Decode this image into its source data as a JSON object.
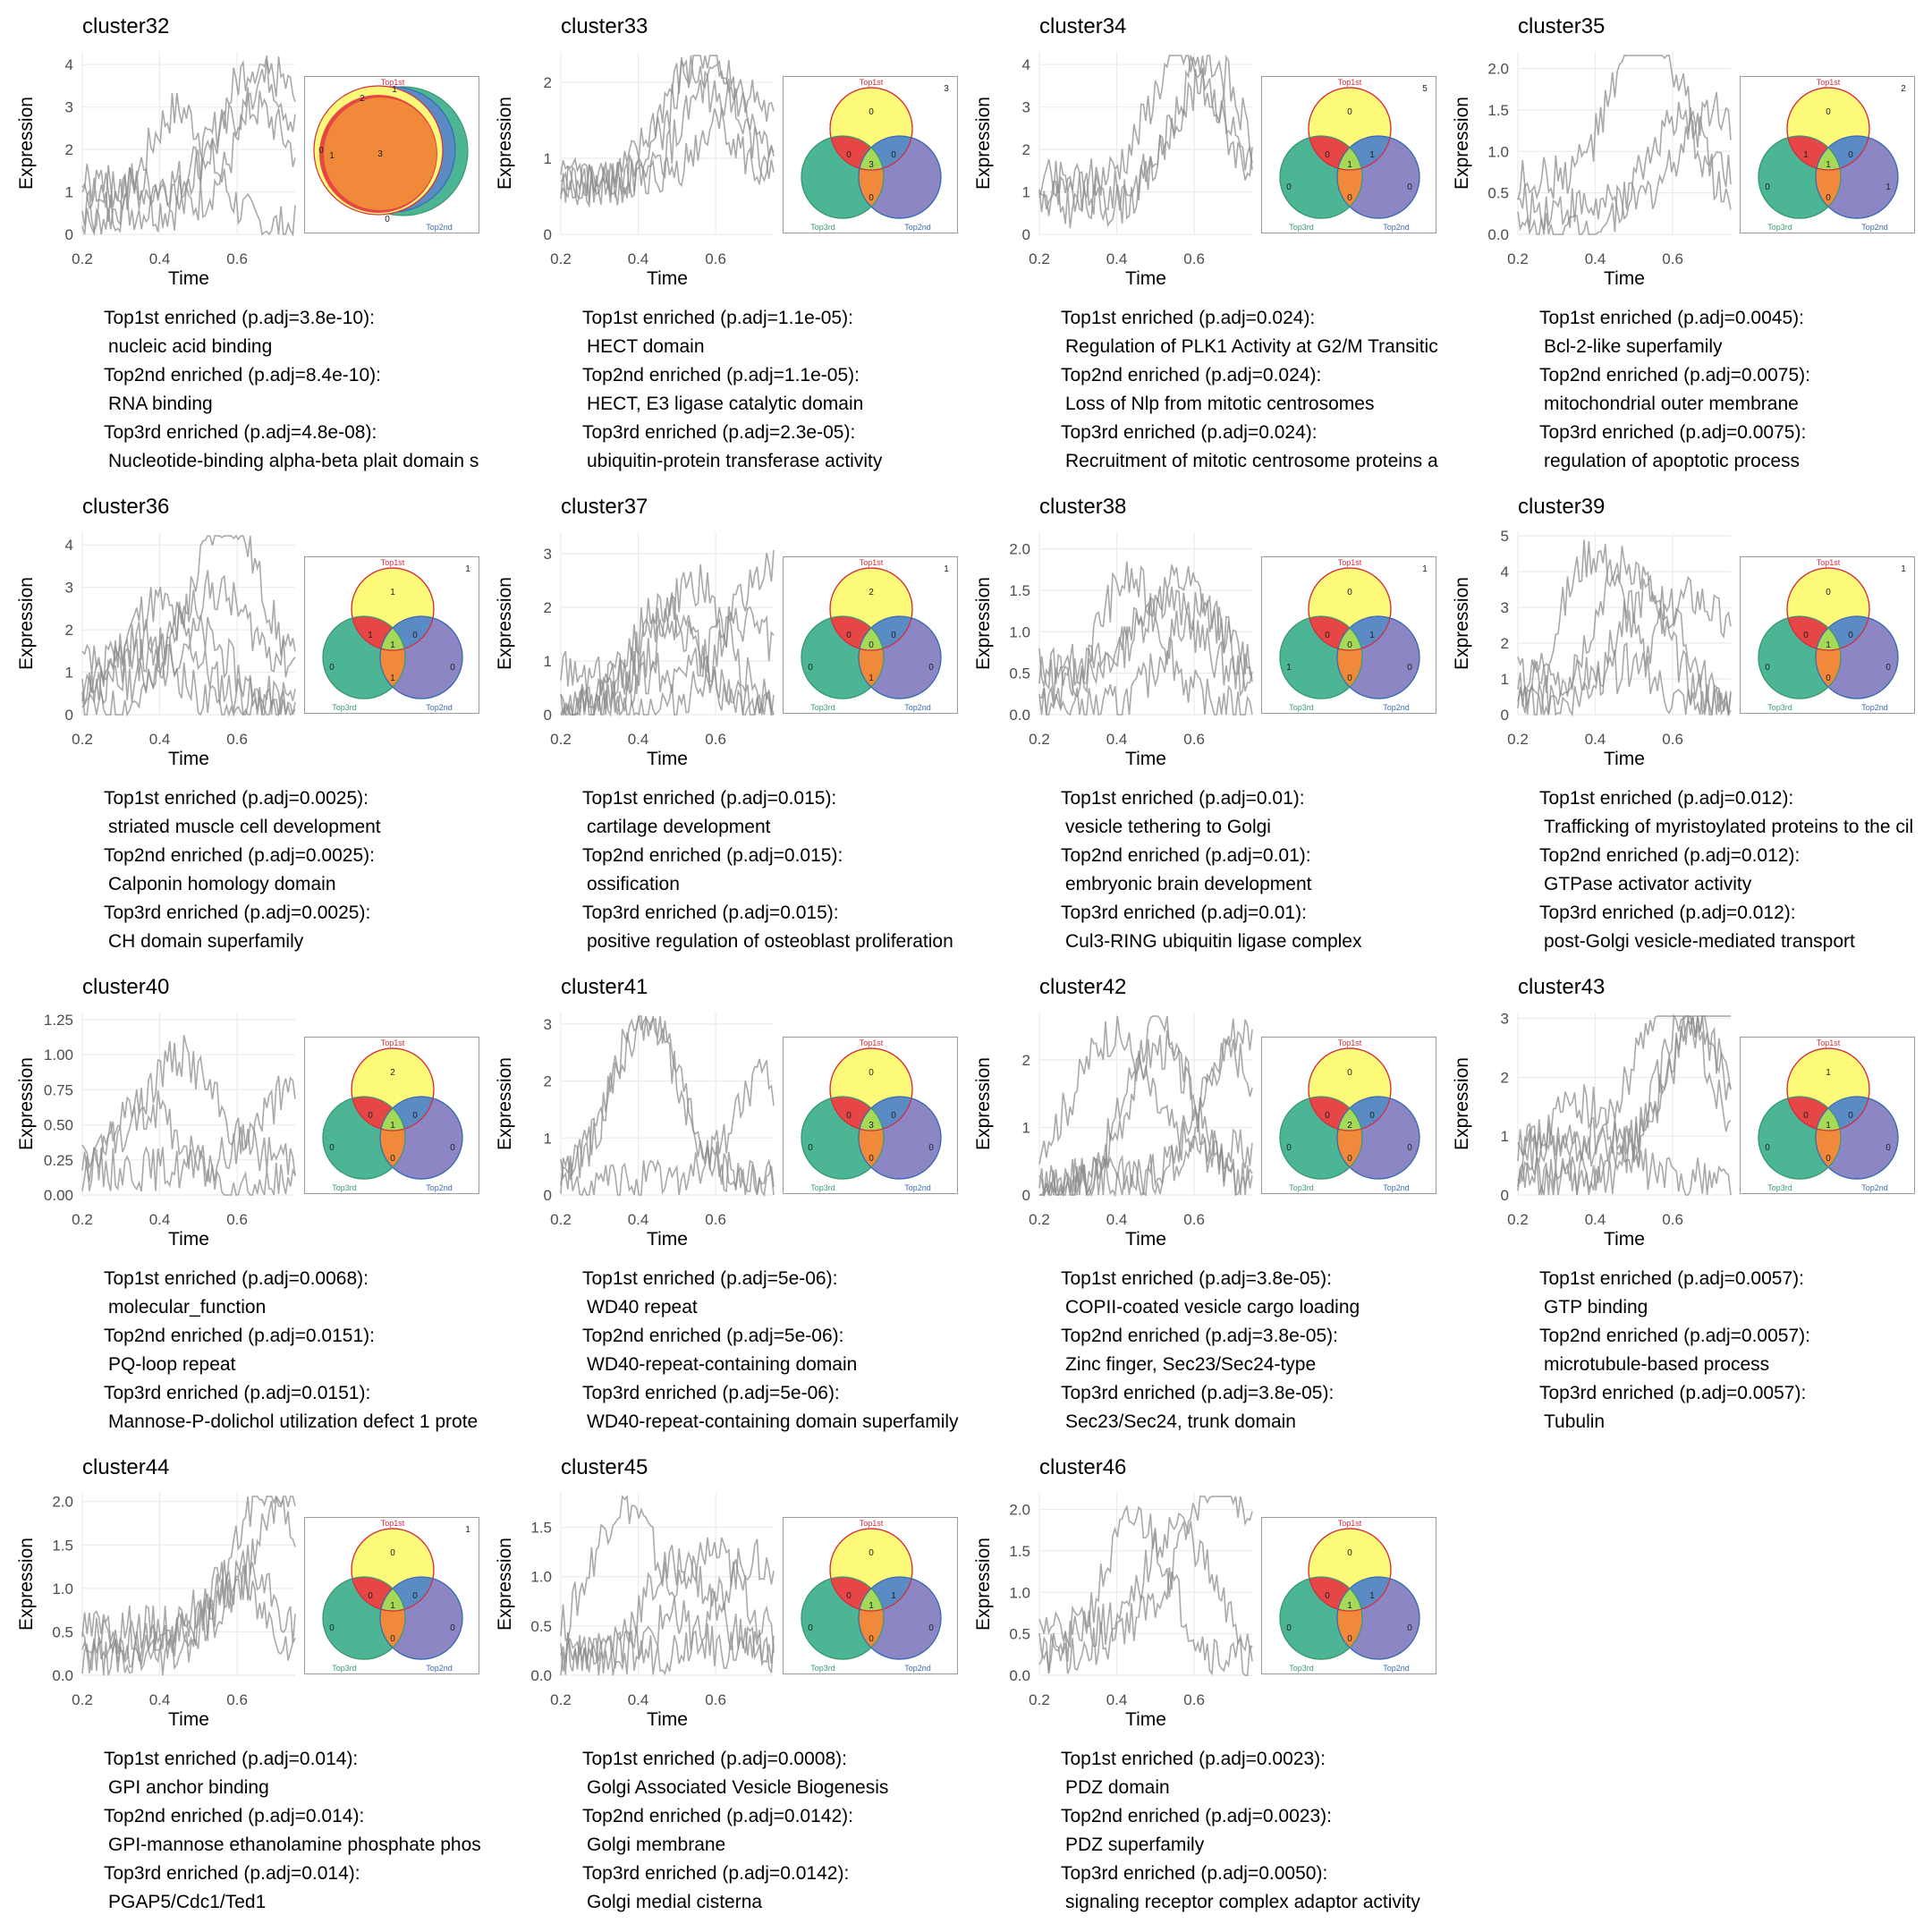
{
  "axis": {
    "xlabel": "Time",
    "ylabel": "Expression"
  },
  "venn_labels": {
    "a": "Top1st",
    "b": "Top2nd",
    "c": "Top3rd"
  },
  "colors": {
    "a": "#fdfa7a",
    "b": "#5a8bc5",
    "c": "#4bb596",
    "ab": "#e64646",
    "bc": "#f08a3a",
    "ac": "#e64646",
    "abc": "#a6d957",
    "line": "#8c8c8c"
  },
  "chart_data": [
    {
      "type": "line",
      "title": "cluster32",
      "xlim": [
        0.2,
        0.75
      ],
      "xticks": [
        "0.2",
        "0.4",
        "0.6"
      ],
      "ylim": [
        0,
        4.3
      ],
      "yticks": [
        "0",
        "1",
        "2",
        "3",
        "4"
      ],
      "venn": {
        "a": "",
        "b": "",
        "ab": "2",
        "bc": "1",
        "ac": "1",
        "abc": "3",
        "c": "",
        "out": "1",
        "extra_a": "0",
        "extra_c": "0",
        "degenerate": true
      },
      "enrich": [
        {
          "label": "Top1st enriched (p.adj=3.8e-10):",
          "term": "nucleic acid binding"
        },
        {
          "label": "Top2nd enriched (p.adj=8.4e-10):",
          "term": "RNA binding"
        },
        {
          "label": "Top3rd enriched (p.adj=4.8e-08):",
          "term": "Nucleotide-binding alpha-beta plait domain s"
        }
      ]
    },
    {
      "type": "line",
      "title": "cluster33",
      "xlim": [
        0.2,
        0.75
      ],
      "xticks": [
        "0.2",
        "0.4",
        "0.6"
      ],
      "ylim": [
        0,
        2.4
      ],
      "yticks": [
        "0",
        "1",
        "2"
      ],
      "venn": {
        "a": "0",
        "b": "",
        "c": "",
        "ab": "0",
        "bc": "0",
        "ac": "0",
        "abc": "3",
        "out": "3"
      },
      "enrich": [
        {
          "label": "Top1st enriched (p.adj=1.1e-05):",
          "term": "HECT domain"
        },
        {
          "label": "Top2nd enriched (p.adj=1.1e-05):",
          "term": "HECT, E3 ligase catalytic domain"
        },
        {
          "label": "Top3rd enriched (p.adj=2.3e-05):",
          "term": "ubiquitin-protein transferase activity"
        }
      ]
    },
    {
      "type": "line",
      "title": "cluster34",
      "xlim": [
        0.2,
        0.75
      ],
      "xticks": [
        "0.2",
        "0.4",
        "0.6"
      ],
      "ylim": [
        0,
        4.3
      ],
      "yticks": [
        "0",
        "1",
        "2",
        "3",
        "4"
      ],
      "venn": {
        "a": "0",
        "b": "0",
        "c": "0",
        "ab": "1",
        "bc": "0",
        "ac": "0",
        "abc": "1",
        "out": "5"
      },
      "enrich": [
        {
          "label": "Top1st enriched (p.adj=0.024):",
          "term": "Regulation of PLK1 Activity at G2/M Transitic"
        },
        {
          "label": "Top2nd enriched (p.adj=0.024):",
          "term": "Loss of Nlp from mitotic centrosomes"
        },
        {
          "label": "Top3rd enriched (p.adj=0.024):",
          "term": "Recruitment of mitotic centrosome proteins a"
        }
      ]
    },
    {
      "type": "line",
      "title": "cluster35",
      "xlim": [
        0.2,
        0.75
      ],
      "xticks": [
        "0.2",
        "0.4",
        "0.6"
      ],
      "ylim": [
        0,
        2.2
      ],
      "yticks": [
        "0.0",
        "0.5",
        "1.0",
        "1.5",
        "2.0"
      ],
      "venn": {
        "a": "0",
        "b": "1",
        "c": "0",
        "ab": "0",
        "bc": "0",
        "ac": "1",
        "abc": "1",
        "out": "2"
      },
      "enrich": [
        {
          "label": "Top1st enriched (p.adj=0.0045):",
          "term": "Bcl-2-like superfamily"
        },
        {
          "label": "Top2nd enriched (p.adj=0.0075):",
          "term": "mitochondrial outer membrane"
        },
        {
          "label": "Top3rd enriched (p.adj=0.0075):",
          "term": "regulation of apoptotic process"
        }
      ]
    },
    {
      "type": "line",
      "title": "cluster36",
      "xlim": [
        0.2,
        0.75
      ],
      "xticks": [
        "0.2",
        "0.4",
        "0.6"
      ],
      "ylim": [
        0,
        4.3
      ],
      "yticks": [
        "0",
        "1",
        "2",
        "3",
        "4"
      ],
      "venn": {
        "a": "1",
        "b": "0",
        "c": "0",
        "ab": "0",
        "bc": "1",
        "ac": "1",
        "abc": "1",
        "out": "1"
      },
      "enrich": [
        {
          "label": "Top1st enriched (p.adj=0.0025):",
          "term": "striated muscle cell development"
        },
        {
          "label": "Top2nd enriched (p.adj=0.0025):",
          "term": "Calponin homology domain"
        },
        {
          "label": "Top3rd enriched (p.adj=0.0025):",
          "term": "CH domain superfamily"
        }
      ]
    },
    {
      "type": "line",
      "title": "cluster37",
      "xlim": [
        0.2,
        0.75
      ],
      "xticks": [
        "0.2",
        "0.4",
        "0.6"
      ],
      "ylim": [
        0,
        3.4
      ],
      "yticks": [
        "0",
        "1",
        "2",
        "3"
      ],
      "venn": {
        "a": "2",
        "b": "0",
        "c": "0",
        "ab": "0",
        "bc": "1",
        "ac": "0",
        "abc": "0",
        "out": "1"
      },
      "enrich": [
        {
          "label": "Top1st enriched (p.adj=0.015):",
          "term": "cartilage development"
        },
        {
          "label": "Top2nd enriched (p.adj=0.015):",
          "term": "ossification"
        },
        {
          "label": "Top3rd enriched (p.adj=0.015):",
          "term": "positive regulation of osteoblast proliferation"
        }
      ]
    },
    {
      "type": "line",
      "title": "cluster38",
      "xlim": [
        0.2,
        0.75
      ],
      "xticks": [
        "0.2",
        "0.4",
        "0.6"
      ],
      "ylim": [
        0,
        2.2
      ],
      "yticks": [
        "0.0",
        "0.5",
        "1.0",
        "1.5",
        "2.0"
      ],
      "venn": {
        "a": "0",
        "b": "0",
        "c": "1",
        "ab": "1",
        "bc": "0",
        "ac": "0",
        "abc": "0",
        "out": "1"
      },
      "enrich": [
        {
          "label": "Top1st enriched (p.adj=0.01):",
          "term": "vesicle tethering to Golgi"
        },
        {
          "label": "Top2nd enriched (p.adj=0.01):",
          "term": "embryonic brain development"
        },
        {
          "label": "Top3rd enriched (p.adj=0.01):",
          "term": "Cul3-RING ubiquitin ligase complex"
        }
      ]
    },
    {
      "type": "line",
      "title": "cluster39",
      "xlim": [
        0.2,
        0.75
      ],
      "xticks": [
        "0.2",
        "0.4",
        "0.6"
      ],
      "ylim": [
        0,
        5.1
      ],
      "yticks": [
        "0",
        "1",
        "2",
        "3",
        "4",
        "5"
      ],
      "venn": {
        "a": "0",
        "b": "0",
        "c": "0",
        "ab": "0",
        "bc": "0",
        "ac": "0",
        "abc": "1",
        "out": "1"
      },
      "enrich": [
        {
          "label": "Top1st enriched (p.adj=0.012):",
          "term": "Trafficking of myristoylated proteins to the cil"
        },
        {
          "label": "Top2nd enriched (p.adj=0.012):",
          "term": "GTPase activator activity"
        },
        {
          "label": "Top3rd enriched (p.adj=0.012):",
          "term": "post-Golgi vesicle-mediated transport"
        }
      ]
    },
    {
      "type": "line",
      "title": "cluster40",
      "xlim": [
        0.2,
        0.75
      ],
      "xticks": [
        "0.2",
        "0.4",
        "0.6"
      ],
      "ylim": [
        0,
        1.3
      ],
      "yticks": [
        "0.00",
        "0.25",
        "0.50",
        "0.75",
        "1.00",
        "1.25"
      ],
      "venn": {
        "a": "2",
        "b": "0",
        "c": "0",
        "ab": "0",
        "bc": "0",
        "ac": "0",
        "abc": "1",
        "out": ""
      },
      "enrich": [
        {
          "label": "Top1st enriched (p.adj=0.0068):",
          "term": "molecular_function"
        },
        {
          "label": "Top2nd enriched (p.adj=0.0151):",
          "term": "PQ-loop repeat"
        },
        {
          "label": "Top3rd enriched (p.adj=0.0151):",
          "term": "Mannose-P-dolichol utilization defect 1 prote"
        }
      ]
    },
    {
      "type": "line",
      "title": "cluster41",
      "xlim": [
        0.2,
        0.75
      ],
      "xticks": [
        "0.2",
        "0.4",
        "0.6"
      ],
      "ylim": [
        0,
        3.2
      ],
      "yticks": [
        "0",
        "1",
        "2",
        "3"
      ],
      "venn": {
        "a": "0",
        "b": "0",
        "c": "0",
        "ab": "0",
        "bc": "0",
        "ac": "0",
        "abc": "3",
        "out": ""
      },
      "enrich": [
        {
          "label": "Top1st enriched (p.adj=5e-06):",
          "term": "WD40 repeat"
        },
        {
          "label": "Top2nd enriched (p.adj=5e-06):",
          "term": "WD40-repeat-containing domain"
        },
        {
          "label": "Top3rd enriched (p.adj=5e-06):",
          "term": "WD40-repeat-containing domain superfamily"
        }
      ]
    },
    {
      "type": "line",
      "title": "cluster42",
      "xlim": [
        0.2,
        0.75
      ],
      "xticks": [
        "0.2",
        "0.4",
        "0.6"
      ],
      "ylim": [
        0,
        2.7
      ],
      "yticks": [
        "0",
        "1",
        "2"
      ],
      "venn": {
        "a": "0",
        "b": "0",
        "c": "0",
        "ab": "0",
        "bc": "0",
        "ac": "0",
        "abc": "2",
        "out": ""
      },
      "enrich": [
        {
          "label": "Top1st enriched (p.adj=3.8e-05):",
          "term": "COPII-coated vesicle cargo loading"
        },
        {
          "label": "Top2nd enriched (p.adj=3.8e-05):",
          "term": "Zinc finger, Sec23/Sec24-type"
        },
        {
          "label": "Top3rd enriched (p.adj=3.8e-05):",
          "term": "Sec23/Sec24, trunk domain"
        }
      ]
    },
    {
      "type": "line",
      "title": "cluster43",
      "xlim": [
        0.2,
        0.75
      ],
      "xticks": [
        "0.2",
        "0.4",
        "0.6"
      ],
      "ylim": [
        0,
        3.1
      ],
      "yticks": [
        "0",
        "1",
        "2",
        "3"
      ],
      "venn": {
        "a": "1",
        "b": "0",
        "c": "0",
        "ab": "0",
        "bc": "0",
        "ac": "0",
        "abc": "1",
        "out": ""
      },
      "enrich": [
        {
          "label": "Top1st enriched (p.adj=0.0057):",
          "term": "GTP binding"
        },
        {
          "label": "Top2nd enriched (p.adj=0.0057):",
          "term": "microtubule-based process"
        },
        {
          "label": "Top3rd enriched (p.adj=0.0057):",
          "term": "Tubulin"
        }
      ]
    },
    {
      "type": "line",
      "title": "cluster44",
      "xlim": [
        0.2,
        0.75
      ],
      "xticks": [
        "0.2",
        "0.4",
        "0.6"
      ],
      "ylim": [
        0,
        2.1
      ],
      "yticks": [
        "0.0",
        "0.5",
        "1.0",
        "1.5",
        "2.0"
      ],
      "venn": {
        "a": "0",
        "b": "0",
        "c": "0",
        "ab": "0",
        "bc": "0",
        "ac": "0",
        "abc": "1",
        "out": "1"
      },
      "enrich": [
        {
          "label": "Top1st enriched (p.adj=0.014):",
          "term": "GPI anchor binding"
        },
        {
          "label": "Top2nd enriched (p.adj=0.014):",
          "term": "GPI-mannose ethanolamine phosphate phos"
        },
        {
          "label": "Top3rd enriched (p.adj=0.014):",
          "term": "PGAP5/Cdc1/Ted1"
        }
      ]
    },
    {
      "type": "line",
      "title": "cluster45",
      "xlim": [
        0.2,
        0.75
      ],
      "xticks": [
        "0.2",
        "0.4",
        "0.6"
      ],
      "ylim": [
        0,
        1.85
      ],
      "yticks": [
        "0.0",
        "0.5",
        "1.0",
        "1.5"
      ],
      "venn": {
        "a": "0",
        "b": "0",
        "c": "0",
        "ab": "1",
        "bc": "0",
        "ac": "0",
        "abc": "1",
        "out": ""
      },
      "enrich": [
        {
          "label": "Top1st enriched (p.adj=0.0008):",
          "term": "Golgi Associated Vesicle Biogenesis"
        },
        {
          "label": "Top2nd enriched (p.adj=0.0142):",
          "term": "Golgi membrane"
        },
        {
          "label": "Top3rd enriched (p.adj=0.0142):",
          "term": "Golgi medial cisterna"
        }
      ]
    },
    {
      "type": "line",
      "title": "cluster46",
      "xlim": [
        0.2,
        0.75
      ],
      "xticks": [
        "0.2",
        "0.4",
        "0.6"
      ],
      "ylim": [
        0,
        2.2
      ],
      "yticks": [
        "0.0",
        "0.5",
        "1.0",
        "1.5",
        "2.0"
      ],
      "venn": {
        "a": "0",
        "b": "0",
        "c": "0",
        "ab": "1",
        "bc": "0",
        "ac": "0",
        "abc": "1",
        "out": ""
      },
      "enrich": [
        {
          "label": "Top1st enriched (p.adj=0.0023):",
          "term": "PDZ domain"
        },
        {
          "label": "Top2nd enriched (p.adj=0.0023):",
          "term": "PDZ superfamily"
        },
        {
          "label": "Top3rd enriched (p.adj=0.0050):",
          "term": "signaling receptor complex adaptor activity"
        }
      ]
    }
  ]
}
